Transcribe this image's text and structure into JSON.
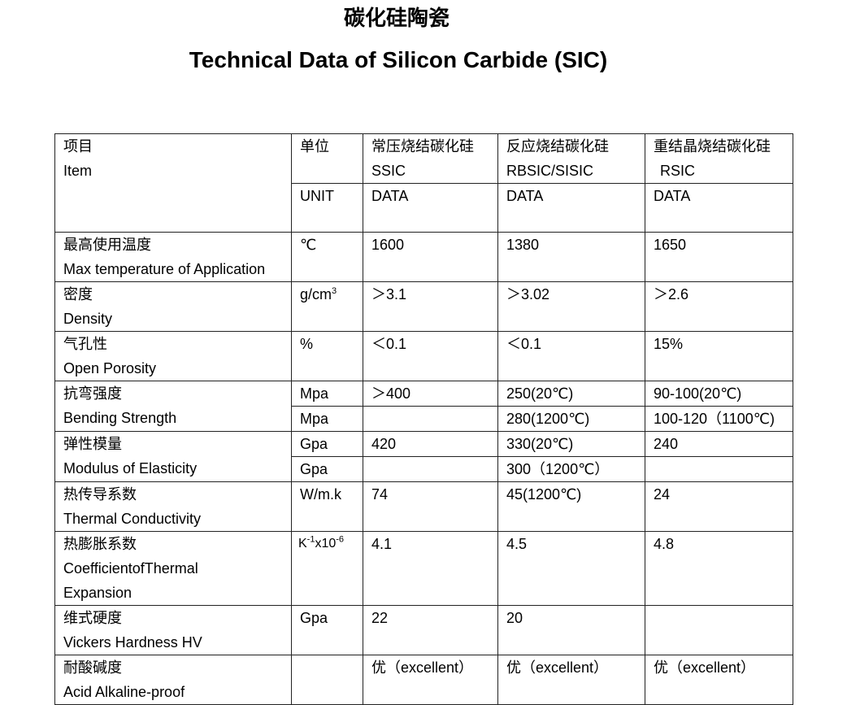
{
  "title_cn": "碳化硅陶瓷",
  "title_en": "Technical Data of Silicon Carbide (SIC)",
  "header": {
    "item_cn": "项目",
    "item_en": "Item",
    "unit_cn": "单位",
    "unit_en": "UNIT",
    "col1_cn": "常压烧结碳化硅",
    "col1_en": "SSIC",
    "col2_cn": "反应烧结碳化硅",
    "col2_en": "RBSIC/SISIC",
    "col3_cn": "重结晶烧结碳化硅",
    "col3_en": "RSIC",
    "data_label": "DATA"
  },
  "rows": [
    {
      "cn": "最高使用温度",
      "en": "Max temperature of Application",
      "unit": "℃",
      "v1": "1600",
      "v2": "1380",
      "v3": "1650"
    },
    {
      "cn": "密度",
      "en": "Density",
      "unit": "g/cm",
      "unit_sup": "3",
      "v1": "＞3.1",
      "v2": "＞3.02",
      "v3": "＞2.6"
    },
    {
      "cn": "气孔性",
      "en": "Open Porosity",
      "unit": "%",
      "v1": "＜0.1",
      "v2": "＜0.1",
      "v3": "15%"
    },
    {
      "cn": "抗弯强度",
      "en": "Bending Strength",
      "unit": "Mpa",
      "v1": "＞400",
      "v2": "250(20℃)",
      "v3": "90-100(20℃)",
      "unit_b": "Mpa",
      "v1_b": "",
      "v2_b": "280(1200℃)",
      "v3_b": "100-120（1100℃)"
    },
    {
      "cn": "弹性模量",
      "en": "Modulus of Elasticity",
      "unit": "Gpa",
      "v1": "420",
      "v2": "330(20℃)",
      "v3": "240",
      "unit_b": "Gpa",
      "v1_b": "",
      "v2_b": "300（1200℃）",
      "v3_b": ""
    },
    {
      "cn": "热传导系数",
      "en": "Thermal Conductivity",
      "unit": "W/m.k",
      "v1": "74",
      "v2": "45(1200℃)",
      "v3": "24"
    },
    {
      "cn": "热膨胀系数",
      "en_words": [
        "Coefficient",
        "of",
        "Thermal"
      ],
      "en_2": "Expansion",
      "unit_k": "K",
      "unit_s1": "-1",
      "unit_x": "x10",
      "unit_s2": "-6",
      "v1": "4.1",
      "v2": "4.5",
      "v3": "4.8"
    },
    {
      "cn": "维式硬度",
      "en": "Vickers Hardness HV",
      "unit": "Gpa",
      "v1": "22",
      "v2": "20",
      "v3": ""
    },
    {
      "cn": "耐酸碱度",
      "en": "Acid Alkaline-proof",
      "unit": "",
      "v1": "优（excellent）",
      "v2": "优（excellent）",
      "v3": "优（excellent）"
    }
  ]
}
